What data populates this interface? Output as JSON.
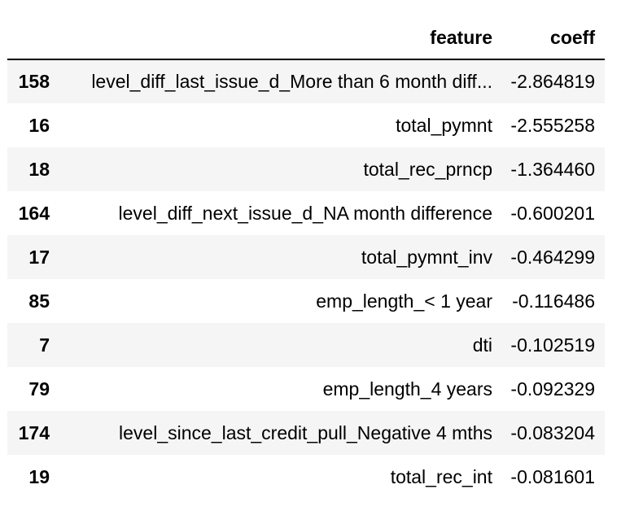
{
  "table": {
    "columns": [
      "",
      "feature",
      "coeff"
    ],
    "rows": [
      {
        "index": "158",
        "feature": "level_diff_last_issue_d_More than 6 month diff...",
        "coeff": "-2.864819"
      },
      {
        "index": "16",
        "feature": "total_pymnt",
        "coeff": "-2.555258"
      },
      {
        "index": "18",
        "feature": "total_rec_prncp",
        "coeff": "-1.364460"
      },
      {
        "index": "164",
        "feature": "level_diff_next_issue_d_NA month difference",
        "coeff": "-0.600201"
      },
      {
        "index": "17",
        "feature": "total_pymnt_inv",
        "coeff": "-0.464299"
      },
      {
        "index": "85",
        "feature": "emp_length_< 1 year",
        "coeff": "-0.116486"
      },
      {
        "index": "7",
        "feature": "dti",
        "coeff": "-0.102519"
      },
      {
        "index": "79",
        "feature": "emp_length_4 years",
        "coeff": "-0.092329"
      },
      {
        "index": "174",
        "feature": "level_since_last_credit_pull_Negative 4 mths",
        "coeff": "-0.083204"
      },
      {
        "index": "19",
        "feature": "total_rec_int",
        "coeff": "-0.081601"
      }
    ]
  }
}
